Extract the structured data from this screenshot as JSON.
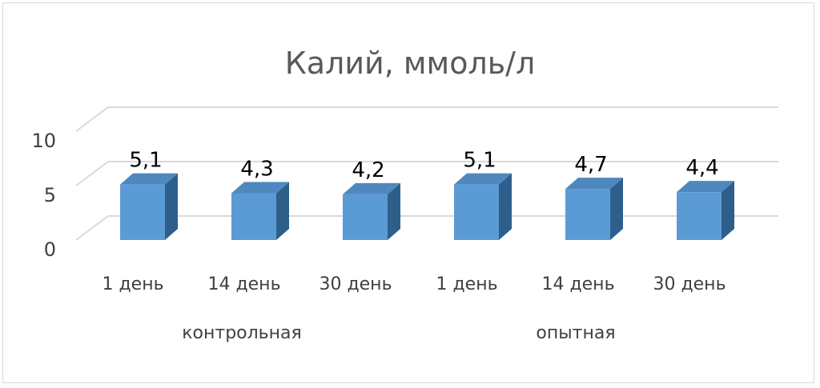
{
  "chart_data": {
    "type": "bar",
    "title": "Калий, ммоль/л",
    "categories": [
      "1 день",
      "14 день",
      "30 день",
      "1 день",
      "14 день",
      "30 день"
    ],
    "groups": [
      {
        "label": "контрольная",
        "indices": [
          0,
          1,
          2
        ]
      },
      {
        "label": "опытная",
        "indices": [
          3,
          4,
          5
        ]
      }
    ],
    "values": [
      5.1,
      4.3,
      4.2,
      5.1,
      4.7,
      4.4
    ],
    "data_labels": [
      "5,1",
      "4,3",
      "4,2",
      "5,1",
      "4,7",
      "4,4"
    ],
    "yticks": [
      "0",
      "5",
      "10"
    ],
    "ylim": [
      0,
      10
    ],
    "grid": true,
    "legend": "none",
    "style": "3d-column",
    "colors": {
      "front": "#5b9bd5",
      "side": "#2e5f8a",
      "top": "#4f88bf",
      "grid": "#d9d9d9"
    }
  }
}
